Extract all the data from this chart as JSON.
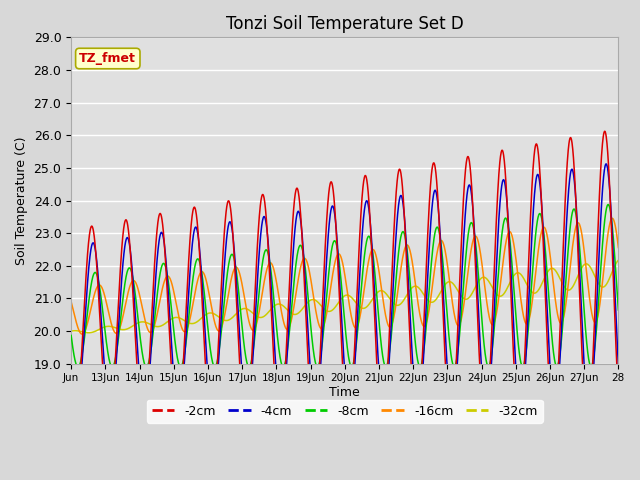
{
  "title": "Tonzi Soil Temperature Set D",
  "xlabel": "Time",
  "ylabel": "Soil Temperature (C)",
  "ylim": [
    19.0,
    29.0
  ],
  "yticks": [
    19.0,
    20.0,
    21.0,
    22.0,
    23.0,
    24.0,
    25.0,
    26.0,
    27.0,
    28.0,
    29.0
  ],
  "xtick_positions": [
    0,
    1,
    2,
    3,
    4,
    5,
    6,
    7,
    8,
    9,
    10,
    11,
    12,
    13,
    14,
    15,
    16
  ],
  "xtick_labels": [
    "Jun",
    "13Jun",
    "14Jun",
    "15Jun",
    "16Jun",
    "17Jun",
    "18Jun",
    "19Jun",
    "20Jun",
    "21Jun",
    "22Jun",
    "23Jun",
    "24Jun",
    "25Jun",
    "26Jun",
    "27Jun",
    "28"
  ],
  "annotation_text": "TZ_fmet",
  "annotation_bbox_facecolor": "#ffffcc",
  "annotation_bbox_edgecolor": "#aaaa00",
  "annotation_bbox_boxstyle": "round,pad=0.3",
  "annotation_color": "#cc0000",
  "color_2cm": "#dd0000",
  "color_4cm": "#0000cc",
  "color_8cm": "#00cc00",
  "color_16cm": "#ff8800",
  "color_32cm": "#cccc00",
  "legend_entries": [
    "-2cm",
    "-4cm",
    "-8cm",
    "-16cm",
    "-32cm"
  ],
  "fig_bg_color": "#d8d8d8",
  "plot_bg_color": "#e0e0e0",
  "grid_color": "#ffffff",
  "n_days": 16
}
